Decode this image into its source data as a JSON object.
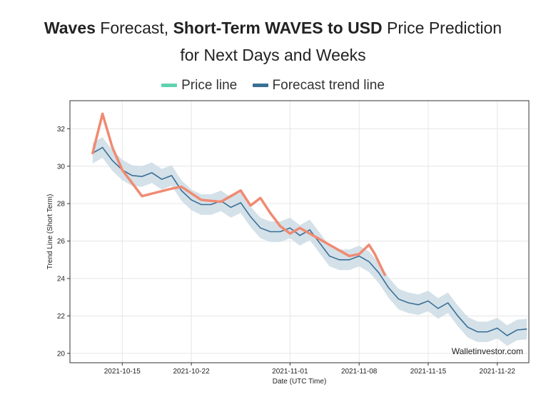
{
  "header": {
    "title_b1": "Waves",
    "title_t1": " Forecast, ",
    "title_b2": "Short-Term WAVES to USD",
    "title_t2": " Price Prediction",
    "title_line2": "for Next Days and Weeks"
  },
  "colors": {
    "price": "#f08a72",
    "price_legend": "#5fd3b0",
    "forecast": "#3a6f96",
    "band": "#c9d9e3",
    "grid": "#e6e6e6"
  },
  "chart_data": {
    "type": "line",
    "title": "Waves Forecast, Short-Term WAVES to USD Price Prediction for Next Days and Weeks",
    "xlabel": "Date (UTC Time)",
    "ylabel": "Trend Line (Short Term)",
    "xlim": [
      -2.3,
      44.2
    ],
    "ylim": [
      19.5,
      33.5
    ],
    "x_start_date": "2021-10-12",
    "x_ticks": [
      {
        "day": 3,
        "label": "2021-10-15"
      },
      {
        "day": 10,
        "label": "2021-10-22"
      },
      {
        "day": 20,
        "label": "2021-11-01"
      },
      {
        "day": 27,
        "label": "2021-11-08"
      },
      {
        "day": 34,
        "label": "2021-11-15"
      },
      {
        "day": 41,
        "label": "2021-11-22"
      }
    ],
    "y_ticks": [
      20,
      22,
      24,
      26,
      28,
      30,
      32
    ],
    "grid": true,
    "legend_position": "top-center",
    "watermark": "Walletinvestor.com",
    "series": [
      {
        "name": "Price line",
        "x": [
          0,
          1,
          2,
          3,
          5,
          8,
          9,
          11,
          13,
          14,
          15,
          16,
          17,
          18,
          19,
          20,
          21,
          22,
          24,
          26,
          27,
          28,
          28.6,
          29.6
        ],
        "y": [
          30.7,
          32.8,
          31.0,
          29.8,
          28.4,
          28.8,
          28.9,
          28.2,
          28.1,
          28.4,
          28.7,
          27.9,
          28.3,
          27.5,
          26.8,
          26.4,
          26.7,
          26.4,
          25.8,
          25.2,
          25.3,
          25.8,
          25.3,
          24.2
        ]
      },
      {
        "name": "Forecast trend line",
        "x": [
          0,
          1,
          2,
          3,
          4,
          5,
          6,
          7,
          8,
          9,
          10,
          11,
          12,
          13,
          14,
          15,
          16,
          17,
          18,
          19,
          20,
          21,
          22,
          23,
          24,
          25,
          26,
          27,
          28,
          29,
          30,
          31,
          32,
          33,
          34,
          35,
          36,
          37,
          38,
          39,
          40,
          41,
          42,
          43,
          44
        ],
        "y": [
          30.7,
          31.0,
          30.3,
          29.8,
          29.5,
          29.45,
          29.65,
          29.3,
          29.5,
          28.7,
          28.2,
          27.95,
          27.95,
          28.15,
          27.8,
          28.05,
          27.3,
          26.7,
          26.5,
          26.5,
          26.7,
          26.3,
          26.6,
          25.9,
          25.2,
          25.0,
          25.0,
          25.2,
          24.9,
          24.3,
          23.5,
          22.9,
          22.7,
          22.6,
          22.8,
          22.4,
          22.7,
          22.0,
          21.4,
          21.15,
          21.15,
          21.35,
          20.95,
          21.25,
          21.3
        ]
      }
    ],
    "band_halfwidth": 0.55
  }
}
